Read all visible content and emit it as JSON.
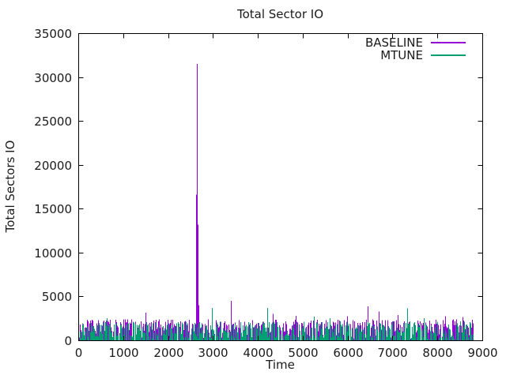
{
  "window": {
    "background": "#ffffff",
    "text_color": "#1a1a1a",
    "border_color": "#000000"
  },
  "chart_data": {
    "type": "impulse",
    "title": "Total Sector IO",
    "xlabel": "Time",
    "ylabel": "Total Sectors IO",
    "xlim": [
      0,
      9000
    ],
    "ylim": [
      0,
      35000
    ],
    "x_ticks": [
      0,
      1000,
      2000,
      3000,
      4000,
      5000,
      6000,
      7000,
      8000,
      9000
    ],
    "y_ticks": [
      0,
      5000,
      10000,
      15000,
      20000,
      25000,
      30000,
      35000
    ],
    "grid": false,
    "legend_position": "top-right-inside",
    "series": [
      {
        "name": "BASELINE",
        "color": "#9400d3",
        "spikes": [
          [
            1500,
            3150
          ],
          [
            2620,
            16600
          ],
          [
            2637,
            31500
          ],
          [
            2658,
            13200
          ],
          [
            2680,
            4000
          ],
          [
            3400,
            4480
          ],
          [
            4340,
            3000
          ],
          [
            4850,
            2800
          ],
          [
            5980,
            2750
          ],
          [
            6450,
            3870
          ],
          [
            6690,
            3300
          ],
          [
            7120,
            2900
          ],
          [
            8180,
            2750
          ],
          [
            8560,
            2650
          ]
        ],
        "noise": {
          "t_start": 20,
          "t_end": 8800,
          "step": 20,
          "y_min": 120,
          "y_max": 2400,
          "seed": 7
        }
      },
      {
        "name": "MTUNE",
        "color": "#009e73",
        "spikes": [
          [
            640,
            2500
          ],
          [
            2975,
            3700
          ],
          [
            4210,
            3700
          ],
          [
            5240,
            2700
          ],
          [
            5600,
            2500
          ],
          [
            7330,
            3650
          ],
          [
            7690,
            2500
          ]
        ],
        "noise": {
          "t_start": 30,
          "t_end": 8790,
          "step": 20,
          "y_min": 120,
          "y_max": 2150,
          "seed": 13
        }
      }
    ]
  }
}
